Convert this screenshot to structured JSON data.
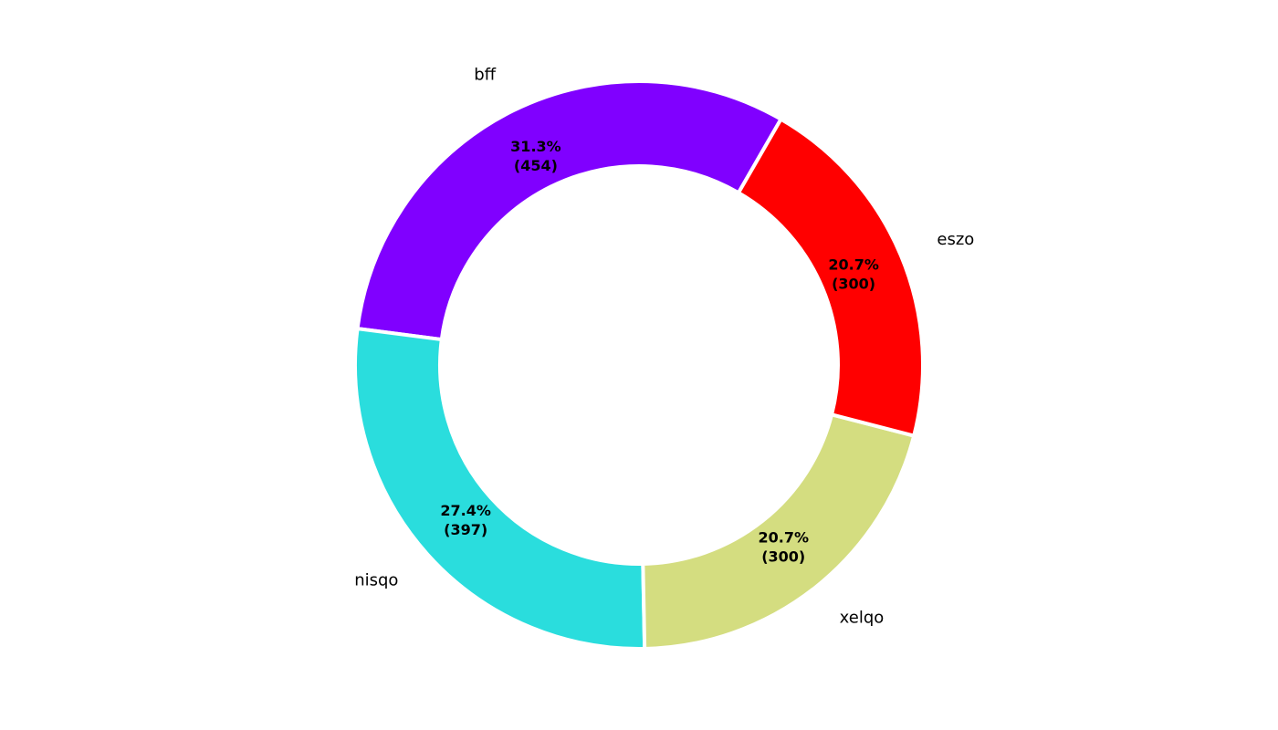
{
  "chart_data": {
    "type": "pie",
    "variant": "donut",
    "title": "",
    "categories": [
      "bff",
      "nisqo",
      "xelqo",
      "eszo"
    ],
    "values": [
      454,
      397,
      300,
      300
    ],
    "percent_labels": [
      "31.3%",
      "27.4%",
      "20.7%",
      "20.7%"
    ],
    "value_labels": [
      "(454)",
      "(397)",
      "(300)",
      "(300)"
    ],
    "colors": [
      "#8000ff",
      "#2adddd",
      "#d4dd80",
      "#ff0000"
    ],
    "start_angle_deg": 60,
    "direction": "counterclockwise",
    "legend": "none"
  }
}
